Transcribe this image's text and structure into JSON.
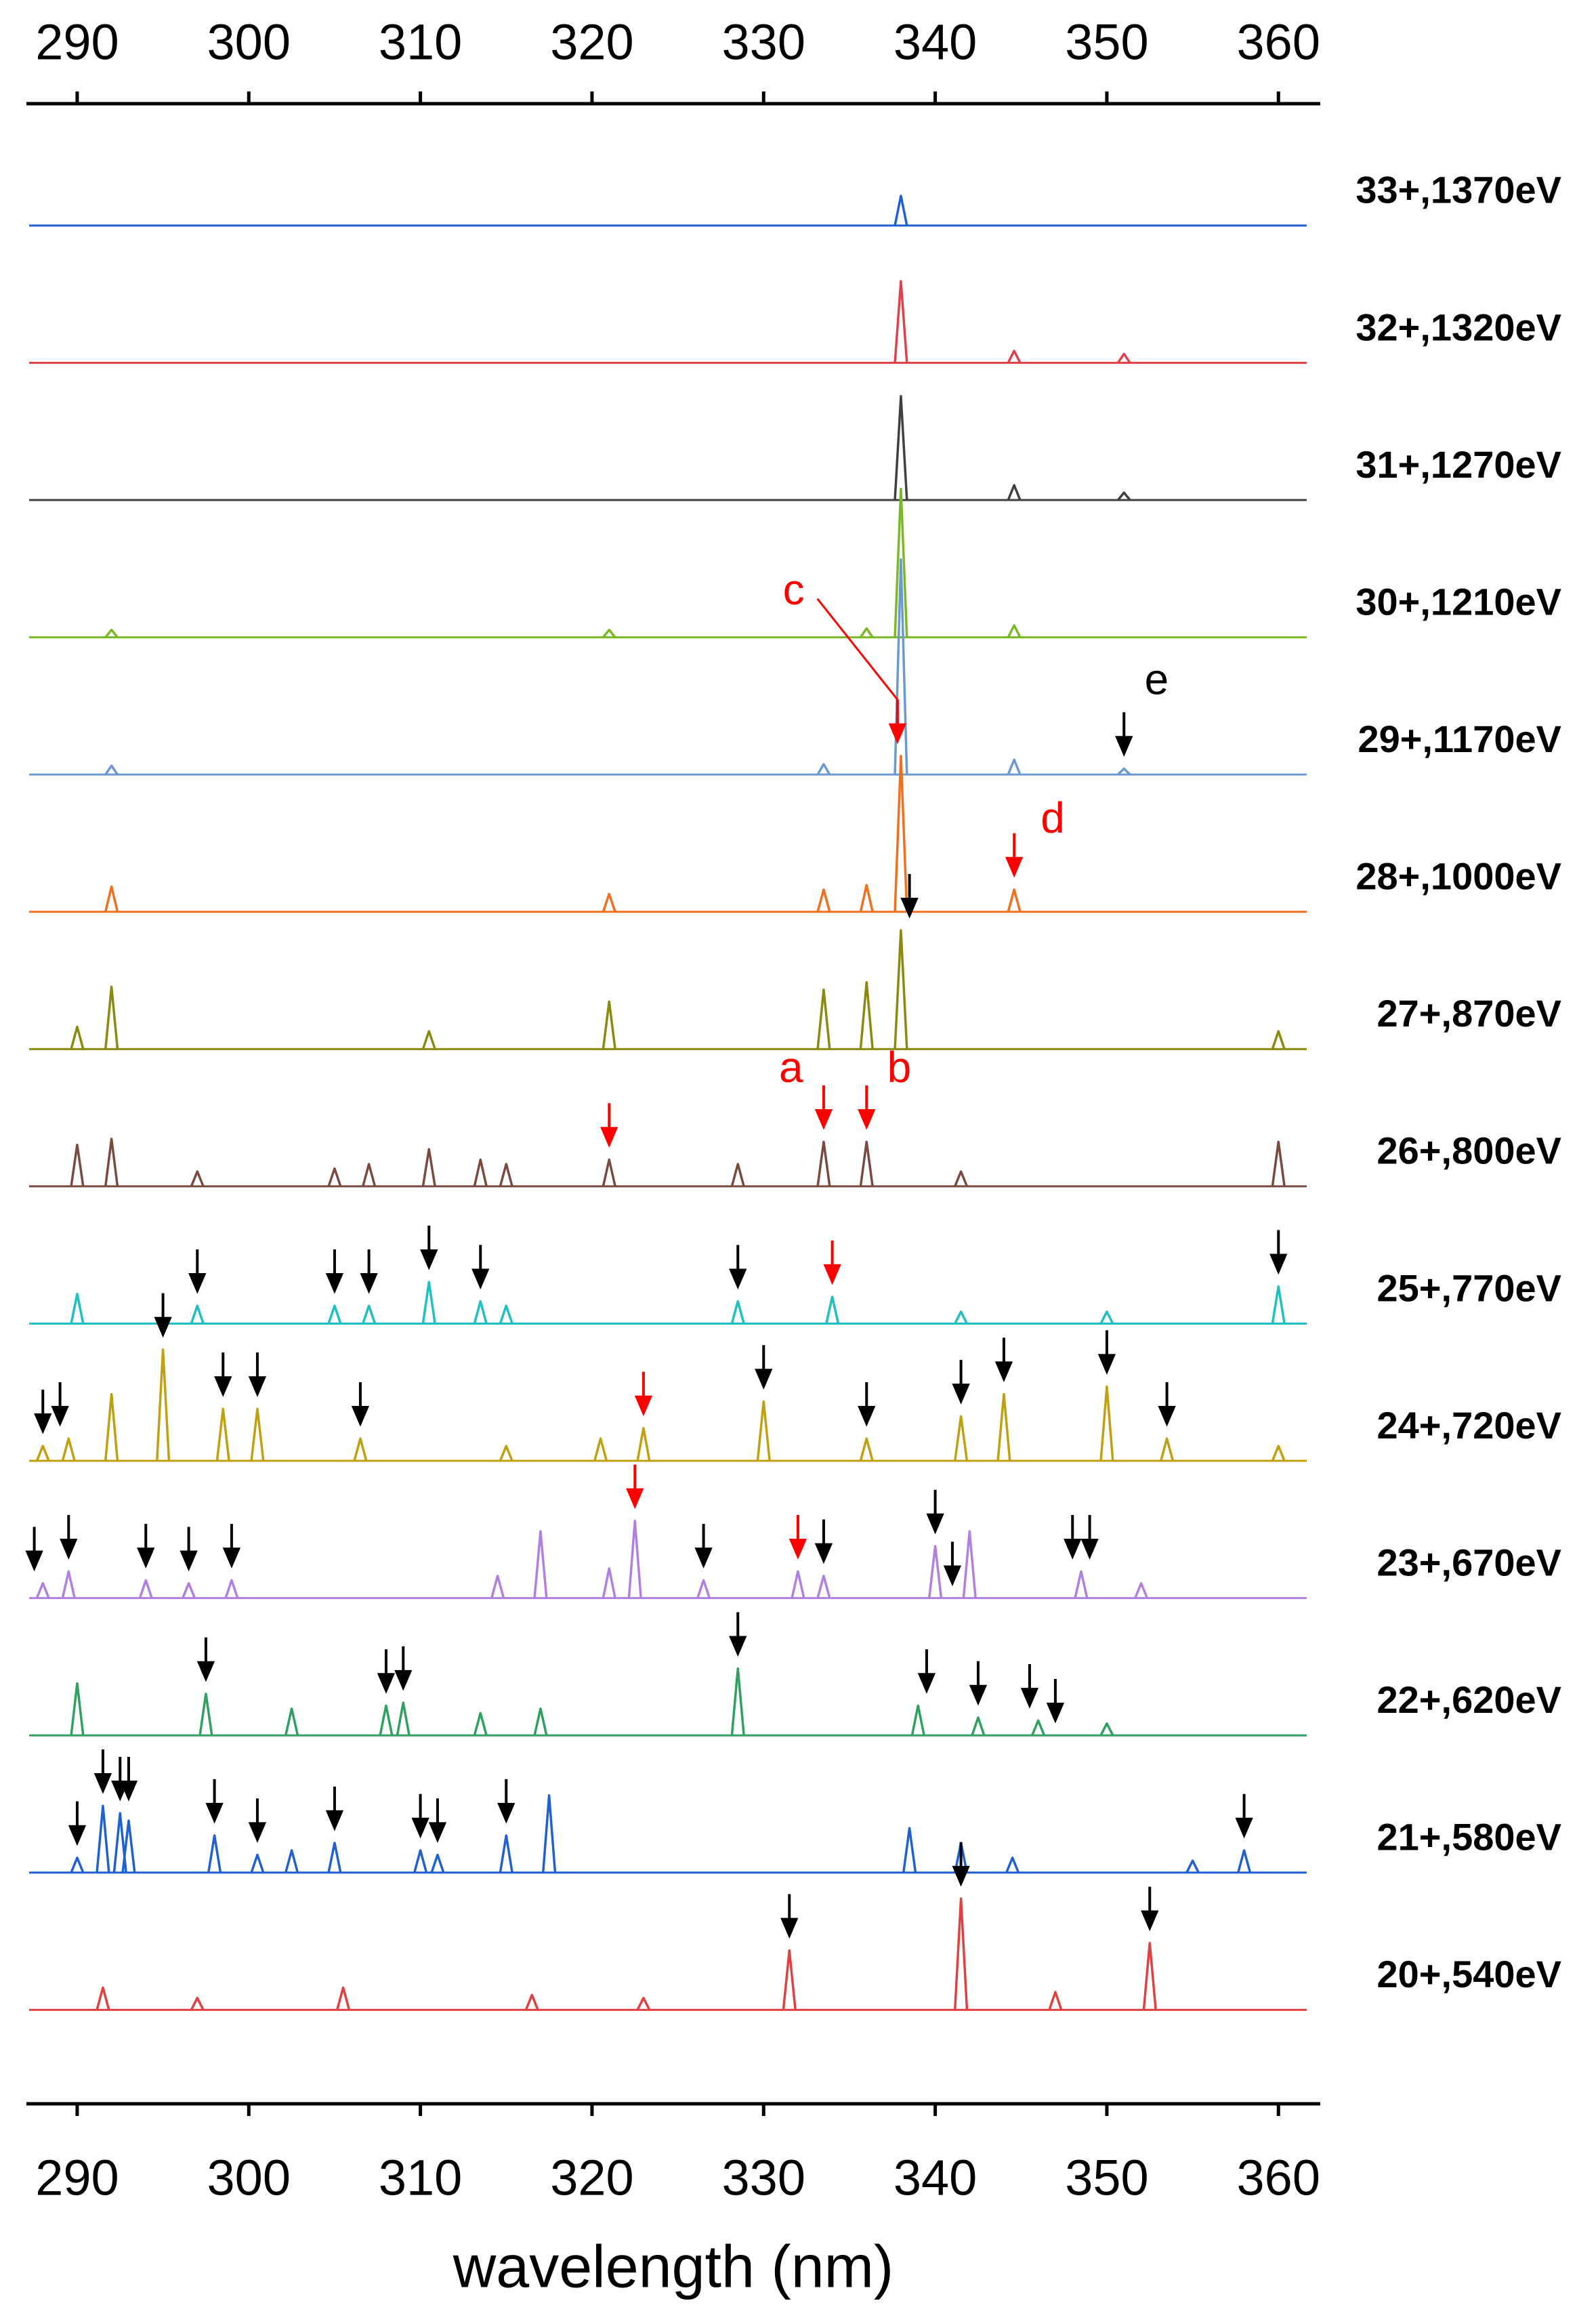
{
  "chart_data": {
    "type": "line",
    "x_label": "wavelength (nm)",
    "xlim": [
      287.2,
      362.2
    ],
    "xticks": [
      290,
      300,
      310,
      320,
      330,
      340,
      350,
      360
    ],
    "series": [
      {
        "name": "33+,1370eV",
        "color": "#1f5fd0",
        "x": [
          338
        ],
        "values": [
          20
        ],
        "arrows": [],
        "arrow_colors": []
      },
      {
        "name": "32+,1320eV",
        "color": "#e0404a",
        "x": [
          338,
          344.6,
          351
        ],
        "values": [
          55,
          8,
          6
        ],
        "arrows": [],
        "arrow_colors": []
      },
      {
        "name": "31+,1270eV",
        "color": "#404040",
        "x": [
          338,
          344.6,
          351
        ],
        "values": [
          70,
          10,
          5
        ],
        "arrows": [],
        "arrow_colors": []
      },
      {
        "name": "30+,1210eV",
        "color": "#7ab828",
        "x": [
          292,
          321,
          336,
          338,
          344.6
        ],
        "values": [
          5,
          5,
          6,
          100,
          8
        ],
        "arrows": [],
        "arrow_colors": []
      },
      {
        "name": "29+,1170eV",
        "color": "#6a9ad0",
        "x": [
          292,
          333.5,
          338,
          344.6,
          351
        ],
        "values": [
          6,
          7,
          145,
          10,
          4
        ],
        "arrows": [
          351
        ],
        "arrow_colors": [
          "#000000"
        ]
      },
      {
        "name": "28+,1000eV",
        "color": "#f07020",
        "x": [
          292,
          321,
          333.5,
          336,
          338,
          344.6
        ],
        "values": [
          17,
          12,
          15,
          18,
          105,
          15
        ],
        "arrows": [
          337.8,
          344.6
        ],
        "arrow_colors": [
          "#ff0000",
          "#ff0000"
        ]
      },
      {
        "name": "27+,870eV",
        "color": "#8a8a10",
        "x": [
          290,
          292,
          310.5,
          321,
          333.5,
          336,
          338,
          360
        ],
        "values": [
          15,
          42,
          12,
          32,
          40,
          45,
          80,
          12
        ],
        "arrows": [
          338.5
        ],
        "arrow_colors": [
          "#000000"
        ]
      },
      {
        "name": "26+,800eV",
        "color": "#7a4a40",
        "x": [
          290,
          292,
          297,
          305,
          307,
          310.5,
          313.5,
          315,
          321,
          328.5,
          333.5,
          336,
          341.5,
          360
        ],
        "values": [
          28,
          32,
          10,
          12,
          15,
          25,
          18,
          15,
          18,
          15,
          30,
          30,
          10,
          30
        ],
        "arrows": [
          321,
          333.5,
          336
        ],
        "arrow_colors": [
          "#ff0000",
          "#ff0000",
          "#ff0000"
        ]
      },
      {
        "name": "25+,770eV",
        "color": "#20c0c0",
        "x": [
          290,
          297,
          305,
          307,
          310.5,
          313.5,
          315,
          328.5,
          334,
          341.5,
          350,
          360
        ],
        "values": [
          20,
          12,
          12,
          12,
          28,
          15,
          12,
          15,
          18,
          8,
          8,
          25
        ],
        "arrows": [
          297,
          305,
          307,
          310.5,
          313.5,
          328.5,
          334,
          360
        ],
        "arrow_colors": [
          "#000000",
          "#000000",
          "#000000",
          "#000000",
          "#000000",
          "#000000",
          "#ff0000",
          "#000000"
        ]
      },
      {
        "name": "24+,720eV",
        "color": "#c0a010",
        "x": [
          288,
          289.5,
          292,
          295,
          298.5,
          300.5,
          306.5,
          315,
          320.5,
          323,
          330,
          336,
          341.5,
          344,
          350,
          353.5,
          360
        ],
        "values": [
          10,
          15,
          45,
          75,
          35,
          35,
          15,
          10,
          15,
          22,
          40,
          15,
          30,
          45,
          50,
          15,
          10
        ],
        "arrows": [
          288,
          289,
          295,
          298.5,
          300.5,
          306.5,
          323,
          330,
          336,
          341.5,
          344,
          350,
          353.5
        ],
        "arrow_colors": [
          "#000000",
          "#000000",
          "#000000",
          "#000000",
          "#000000",
          "#000000",
          "#ff0000",
          "#000000",
          "#000000",
          "#000000",
          "#000000",
          "#000000",
          "#000000"
        ]
      },
      {
        "name": "23+,670eV",
        "color": "#b080e0",
        "x": [
          288,
          289.5,
          294,
          296.5,
          299,
          314.5,
          317,
          321,
          322.5,
          326.5,
          332,
          333.5,
          340,
          342,
          348.5,
          352
        ],
        "values": [
          10,
          18,
          12,
          10,
          12,
          15,
          45,
          20,
          52,
          12,
          18,
          15,
          35,
          45,
          18,
          10
        ],
        "arrows": [
          287.5,
          289.5,
          294,
          296.5,
          299,
          322.5,
          326.5,
          332,
          333.5,
          340,
          341,
          348,
          349
        ],
        "arrow_colors": [
          "#000000",
          "#000000",
          "#000000",
          "#000000",
          "#000000",
          "#ff0000",
          "#000000",
          "#ff0000",
          "#000000",
          "#000000",
          "#000000",
          "#000000",
          "#000000"
        ]
      },
      {
        "name": "22+,620eV",
        "color": "#30a060",
        "x": [
          290,
          297.5,
          302.5,
          308,
          309,
          313.5,
          317,
          328.5,
          339,
          342.5,
          346,
          350
        ],
        "values": [
          35,
          28,
          18,
          20,
          22,
          15,
          18,
          45,
          20,
          12,
          10,
          8
        ],
        "arrows": [
          297.5,
          308,
          309,
          328.5,
          339.5,
          342.5,
          345.5,
          347
        ],
        "arrow_colors": [
          "#000000",
          "#000000",
          "#000000",
          "#000000",
          "#000000",
          "#000000",
          "#000000",
          "#000000"
        ]
      },
      {
        "name": "21+,580eV",
        "color": "#2060d0",
        "x": [
          290,
          291.5,
          292.5,
          293,
          298,
          300.5,
          302.5,
          305,
          310,
          311,
          315,
          317.5,
          338.5,
          341.5,
          344.5,
          355,
          358
        ],
        "values": [
          10,
          45,
          40,
          35,
          25,
          12,
          15,
          20,
          15,
          12,
          25,
          52,
          30,
          20,
          10,
          8,
          15
        ],
        "arrows": [
          290,
          291.5,
          292.5,
          293,
          298,
          300.5,
          305,
          310,
          311,
          315,
          358
        ],
        "arrow_colors": [
          "#000000",
          "#000000",
          "#000000",
          "#000000",
          "#000000",
          "#000000",
          "#000000",
          "#000000",
          "#000000",
          "#000000",
          "#000000"
        ]
      },
      {
        "name": "20+,540eV",
        "color": "#e04040",
        "x": [
          291.5,
          297,
          305.5,
          316.5,
          323,
          331.5,
          341.5,
          347,
          352.5
        ],
        "values": [
          15,
          8,
          15,
          10,
          8,
          40,
          75,
          12,
          45
        ],
        "arrows": [
          331.5,
          341.5,
          352.5
        ],
        "arrow_colors": [
          "#000000",
          "#000000",
          "#000000"
        ]
      }
    ],
    "annotations": [
      {
        "text": "a",
        "x": 333.5,
        "series": 7,
        "color": "#ff0000"
      },
      {
        "text": "b",
        "x": 336,
        "series": 7,
        "color": "#ff0000"
      },
      {
        "text": "c",
        "x": 337.8,
        "series": 5,
        "color": "#ff0000"
      },
      {
        "text": "d",
        "x": 344.6,
        "series": 5,
        "color": "#ff0000"
      },
      {
        "text": "e",
        "x": 351,
        "series": 4,
        "color": "#000000"
      }
    ]
  }
}
